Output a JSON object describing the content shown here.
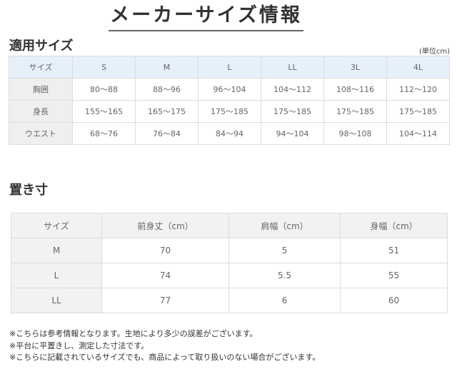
{
  "title": "メーカーサイズ情報",
  "applicable": {
    "heading": "適用サイズ",
    "unit": "(単位cm)",
    "rows": [
      [
        "サイズ",
        "S",
        "M",
        "L",
        "LL",
        "3L",
        "4L"
      ],
      [
        "胸囲",
        "80〜88",
        "88〜96",
        "96〜104",
        "104〜112",
        "108〜116",
        "112〜120"
      ],
      [
        "身長",
        "155〜165",
        "165〜175",
        "175〜185",
        "175〜185",
        "175〜185",
        "175〜185"
      ],
      [
        "ウエスト",
        "68〜76",
        "76〜84",
        "84〜94",
        "94〜104",
        "98〜108",
        "104〜114"
      ]
    ]
  },
  "measurements": {
    "heading": "置き寸",
    "rows": [
      [
        "サイズ",
        "前身丈（cm）",
        "肩幅（cm）",
        "身幅（cm）"
      ],
      [
        "M",
        "70",
        "5",
        "51"
      ],
      [
        "L",
        "74",
        "5.5",
        "55"
      ],
      [
        "LL",
        "77",
        "6",
        "60"
      ]
    ]
  },
  "notes": [
    "※こちらは参考情報となります。生地により多少の誤差がございます。",
    "※平台に平置きし、測定した寸法です。",
    "※こちらに記載されているサイズでも、商品によって取り扱いのない場合がございます。"
  ]
}
